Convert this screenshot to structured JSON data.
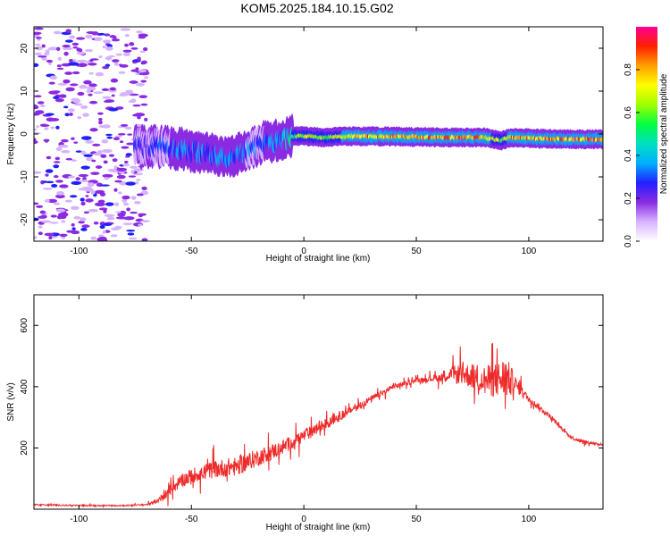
{
  "figure": {
    "title": "KOM5.2025.184.10.15.G02"
  },
  "colors": {
    "snr_line": "#ee2a2a",
    "colormap": [
      "#ffffff",
      "#d6b3ff",
      "#8a2be2",
      "#2020ff",
      "#00b0ff",
      "#00e0c0",
      "#00ff40",
      "#a0ff00",
      "#ffff00",
      "#ffa000",
      "#ff2000",
      "#ff0090"
    ]
  },
  "chart_data": [
    {
      "type": "heatmap",
      "name": "spectrogram",
      "xlabel": "Height of straight line (km)",
      "ylabel": "Frequency (Hz)",
      "xlim": [
        -120,
        133
      ],
      "ylim": [
        -25,
        25
      ],
      "xticks": [
        -100,
        -50,
        0,
        50,
        100
      ],
      "yticks": [
        -20,
        -10,
        0,
        10,
        20
      ],
      "grid": false,
      "colorbar": {
        "label": "Normalized spectral amplitude",
        "range": [
          0,
          1
        ],
        "ticks": [
          "0.0",
          "0.2",
          "0.4",
          "0.6",
          "0.8"
        ]
      },
      "signal_track": {
        "x": [
          -75,
          -60,
          -45,
          -35,
          -25,
          -18,
          -10,
          -5,
          0,
          10,
          20,
          40,
          60,
          80,
          88,
          92,
          100,
          115,
          133
        ],
        "freq": [
          -3,
          -3,
          -4.5,
          -5.5,
          -4,
          -2,
          -1.5,
          -0.5,
          -0.5,
          -0.8,
          -0.5,
          -0.6,
          -0.8,
          -0.8,
          -1.5,
          -0.8,
          -1,
          -1.2,
          -1.2
        ],
        "amplitude": [
          0.25,
          0.3,
          0.35,
          0.35,
          0.3,
          0.3,
          0.35,
          0.5,
          0.7,
          0.6,
          0.75,
          0.8,
          0.85,
          0.8,
          0.6,
          0.75,
          0.8,
          0.85,
          0.85
        ]
      },
      "noise_region": {
        "x_range": [
          -120,
          -70
        ],
        "amplitude": 0.12
      }
    },
    {
      "type": "line",
      "name": "snr",
      "xlabel": "Height of straight line (km)",
      "ylabel": "SNR (v/v)",
      "xlim": [
        -120,
        133
      ],
      "ylim": [
        0,
        700
      ],
      "xticks": [
        -100,
        -50,
        0,
        50,
        100
      ],
      "yticks": [
        200,
        400,
        600
      ],
      "grid": false,
      "series": [
        {
          "x": [
            -120,
            -100,
            -80,
            -70,
            -65,
            -60,
            -55,
            -50,
            -40,
            -30,
            -20,
            -10,
            0,
            10,
            20,
            30,
            40,
            50,
            55,
            60,
            65,
            70,
            75,
            80,
            85,
            90,
            95,
            100,
            105,
            110,
            115,
            120,
            125,
            133
          ],
          "values": [
            15,
            12,
            12,
            15,
            25,
            60,
            90,
            110,
            130,
            140,
            170,
            200,
            240,
            280,
            320,
            360,
            400,
            420,
            425,
            430,
            440,
            440,
            435,
            420,
            420,
            430,
            400,
            360,
            330,
            300,
            260,
            230,
            220,
            210
          ],
          "spread": [
            6,
            6,
            6,
            8,
            20,
            50,
            60,
            70,
            80,
            90,
            80,
            70,
            60,
            50,
            40,
            30,
            25,
            20,
            25,
            40,
            70,
            100,
            120,
            140,
            160,
            200,
            60,
            30,
            25,
            20,
            15,
            15,
            15,
            12
          ]
        }
      ]
    }
  ]
}
